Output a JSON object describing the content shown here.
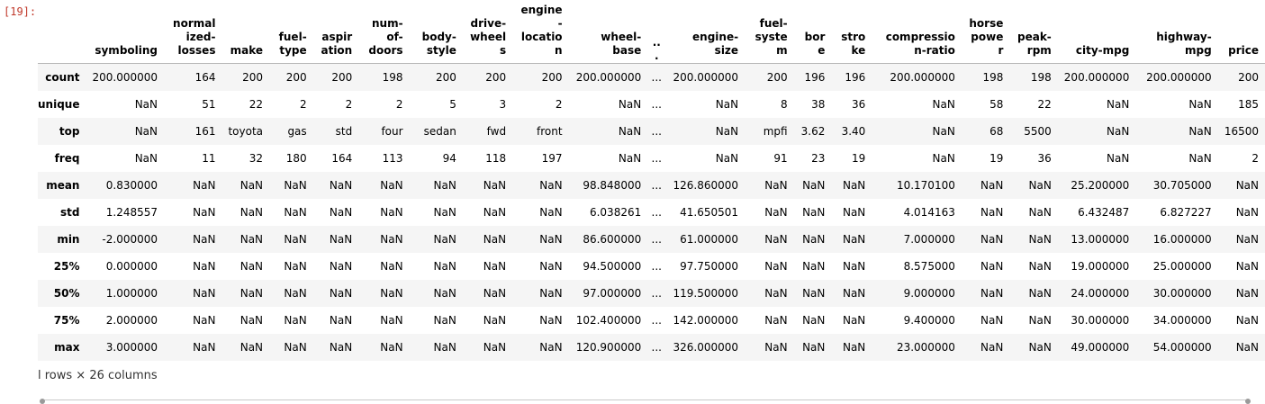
{
  "prompt": "[19]:",
  "table": {
    "columns": [
      "symboling",
      "normalized-losses",
      "make",
      "fuel-type",
      "aspiration",
      "num-of-doors",
      "body-style",
      "drive-wheels",
      "engine-location",
      "wheel-base",
      "...",
      "engine-size",
      "fuel-system",
      "bore",
      "stroke",
      "compression-ratio",
      "horsepower",
      "peak-rpm",
      "city-mpg",
      "highway-mpg",
      "price"
    ],
    "rows": [
      {
        "index": "count",
        "values": [
          "200.000000",
          "164",
          "200",
          "200",
          "200",
          "198",
          "200",
          "200",
          "200",
          "200.000000",
          "...",
          "200.000000",
          "200",
          "196",
          "196",
          "200.000000",
          "198",
          "198",
          "200.000000",
          "200.000000",
          "200"
        ]
      },
      {
        "index": "unique",
        "values": [
          "NaN",
          "51",
          "22",
          "2",
          "2",
          "2",
          "5",
          "3",
          "2",
          "NaN",
          "...",
          "NaN",
          "8",
          "38",
          "36",
          "NaN",
          "58",
          "22",
          "NaN",
          "NaN",
          "185"
        ]
      },
      {
        "index": "top",
        "values": [
          "NaN",
          "161",
          "toyota",
          "gas",
          "std",
          "four",
          "sedan",
          "fwd",
          "front",
          "NaN",
          "...",
          "NaN",
          "mpfi",
          "3.62",
          "3.40",
          "NaN",
          "68",
          "5500",
          "NaN",
          "NaN",
          "16500"
        ]
      },
      {
        "index": "freq",
        "values": [
          "NaN",
          "11",
          "32",
          "180",
          "164",
          "113",
          "94",
          "118",
          "197",
          "NaN",
          "...",
          "NaN",
          "91",
          "23",
          "19",
          "NaN",
          "19",
          "36",
          "NaN",
          "NaN",
          "2"
        ]
      },
      {
        "index": "mean",
        "values": [
          "0.830000",
          "NaN",
          "NaN",
          "NaN",
          "NaN",
          "NaN",
          "NaN",
          "NaN",
          "NaN",
          "98.848000",
          "...",
          "126.860000",
          "NaN",
          "NaN",
          "NaN",
          "10.170100",
          "NaN",
          "NaN",
          "25.200000",
          "30.705000",
          "NaN"
        ]
      },
      {
        "index": "std",
        "values": [
          "1.248557",
          "NaN",
          "NaN",
          "NaN",
          "NaN",
          "NaN",
          "NaN",
          "NaN",
          "NaN",
          "6.038261",
          "...",
          "41.650501",
          "NaN",
          "NaN",
          "NaN",
          "4.014163",
          "NaN",
          "NaN",
          "6.432487",
          "6.827227",
          "NaN"
        ]
      },
      {
        "index": "min",
        "values": [
          "-2.000000",
          "NaN",
          "NaN",
          "NaN",
          "NaN",
          "NaN",
          "NaN",
          "NaN",
          "NaN",
          "86.600000",
          "...",
          "61.000000",
          "NaN",
          "NaN",
          "NaN",
          "7.000000",
          "NaN",
          "NaN",
          "13.000000",
          "16.000000",
          "NaN"
        ]
      },
      {
        "index": "25%",
        "values": [
          "0.000000",
          "NaN",
          "NaN",
          "NaN",
          "NaN",
          "NaN",
          "NaN",
          "NaN",
          "NaN",
          "94.500000",
          "...",
          "97.750000",
          "NaN",
          "NaN",
          "NaN",
          "8.575000",
          "NaN",
          "NaN",
          "19.000000",
          "25.000000",
          "NaN"
        ]
      },
      {
        "index": "50%",
        "values": [
          "1.000000",
          "NaN",
          "NaN",
          "NaN",
          "NaN",
          "NaN",
          "NaN",
          "NaN",
          "NaN",
          "97.000000",
          "...",
          "119.500000",
          "NaN",
          "NaN",
          "NaN",
          "9.000000",
          "NaN",
          "NaN",
          "24.000000",
          "30.000000",
          "NaN"
        ]
      },
      {
        "index": "75%",
        "values": [
          "2.000000",
          "NaN",
          "NaN",
          "NaN",
          "NaN",
          "NaN",
          "NaN",
          "NaN",
          "NaN",
          "102.400000",
          "...",
          "142.000000",
          "NaN",
          "NaN",
          "NaN",
          "9.400000",
          "NaN",
          "NaN",
          "30.000000",
          "34.000000",
          "NaN"
        ]
      },
      {
        "index": "max",
        "values": [
          "3.000000",
          "NaN",
          "NaN",
          "NaN",
          "NaN",
          "NaN",
          "NaN",
          "NaN",
          "NaN",
          "120.900000",
          "...",
          "326.000000",
          "NaN",
          "NaN",
          "NaN",
          "23.000000",
          "NaN",
          "NaN",
          "49.000000",
          "54.000000",
          "NaN"
        ]
      }
    ]
  },
  "footer": "l rows × 26 columns",
  "colors": {
    "prompt": "#c0392b",
    "stripe": "#f5f5f5",
    "rule": "#b8b8b8"
  }
}
